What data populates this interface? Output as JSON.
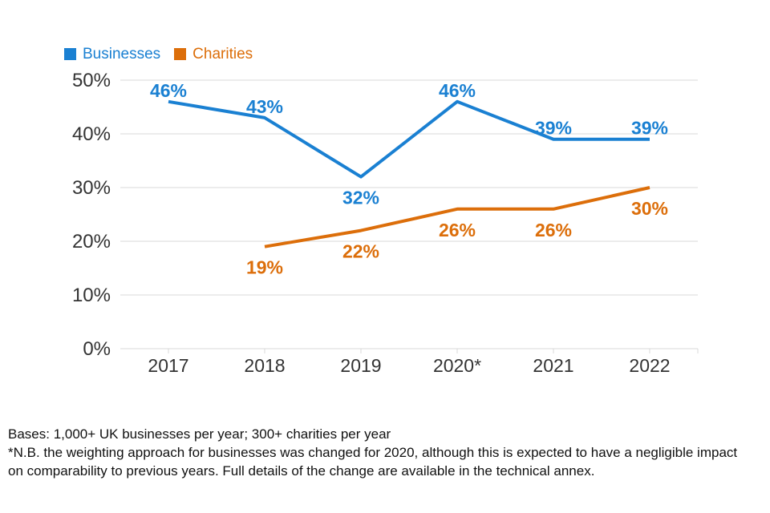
{
  "chart_data": {
    "type": "line",
    "categories": [
      "2017",
      "2018",
      "2019",
      "2020*",
      "2021",
      "2022"
    ],
    "series": [
      {
        "name": "Businesses",
        "color": "#1a80d2",
        "values": [
          46,
          43,
          32,
          46,
          39,
          39
        ],
        "label_position": "above",
        "label_overrides": {
          "2": "below"
        }
      },
      {
        "name": "Charities",
        "color": "#dc6e0a",
        "values": [
          null,
          19,
          22,
          26,
          26,
          30
        ],
        "label_position": "below",
        "label_overrides": {}
      }
    ],
    "title": "",
    "xlabel": "",
    "ylabel": "",
    "ylim": [
      0,
      50
    ],
    "ytick_step": 10,
    "ytick_labels": [
      "0%",
      "10%",
      "20%",
      "30%",
      "40%",
      "50%"
    ],
    "grid": true,
    "grid_color": "#d9d9d9",
    "legend_position": "top-left",
    "data_label_format": "{v}%"
  },
  "footer": {
    "lines": [
      "Bases: 1,000+ UK businesses per year; 300+ charities per year",
      "*N.B. the weighting approach for businesses was changed for 2020, although this is expected to have a negligible impact",
      "on comparability to previous years. Full details of the change are available in the technical annex."
    ]
  }
}
